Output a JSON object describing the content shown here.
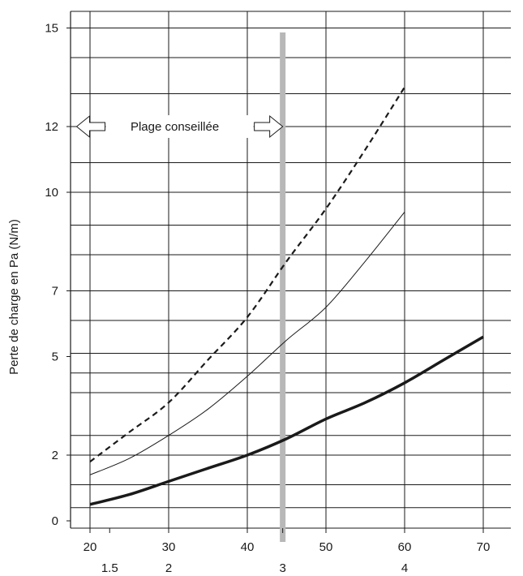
{
  "chart_data": {
    "type": "line",
    "title": "",
    "xlabel": "",
    "ylabel": "Perte de charge en Pa (N/m)",
    "x_ticks": [
      "20",
      "30",
      "40",
      "50",
      "60",
      "70"
    ],
    "x_secondary_ticks": [
      {
        "x": 22.5,
        "label": "1.5"
      },
      {
        "x": 30,
        "label": "2"
      },
      {
        "x": 44.5,
        "label": "3"
      },
      {
        "x": 60,
        "label": "4"
      }
    ],
    "y_ticks": [
      {
        "y": 0,
        "label": "0"
      },
      {
        "y": 2,
        "label": "2"
      },
      {
        "y": 5,
        "label": "5"
      },
      {
        "y": 7,
        "label": "7"
      },
      {
        "y": 10,
        "label": "10"
      },
      {
        "y": 12,
        "label": "12"
      },
      {
        "y": 15,
        "label": "15"
      }
    ],
    "xlim": [
      19,
      71
    ],
    "ylim": [
      0,
      16
    ],
    "y_gridlines": [
      0.4,
      1.1,
      2,
      2.6,
      3.9,
      4.5,
      5.1,
      6.1,
      7,
      8.1,
      9,
      10,
      10.9,
      12,
      13,
      14.1,
      15
    ],
    "grid": true,
    "reference_line": {
      "x": 44.5,
      "color": "#b8b8b8"
    },
    "annotation": {
      "text": "Plage conseillée",
      "y": 12,
      "x_from": 18.3,
      "x_to": 44.5
    },
    "series": [
      {
        "style": "dashed",
        "color": "#1a1a1a",
        "x": [
          20,
          25,
          30,
          35,
          40,
          45,
          50,
          55,
          60
        ],
        "y": [
          1.8,
          2.7,
          3.6,
          4.9,
          6.2,
          7.9,
          9.5,
          11.3,
          13.2
        ]
      },
      {
        "style": "thin",
        "color": "#1a1a1a",
        "x": [
          20,
          25,
          30,
          35,
          40,
          45,
          50,
          55,
          60
        ],
        "y": [
          1.4,
          1.9,
          2.6,
          3.4,
          4.4,
          5.5,
          6.5,
          7.9,
          9.4
        ]
      },
      {
        "style": "thick",
        "color": "#1a1a1a",
        "x": [
          20,
          25,
          30,
          35,
          40,
          45,
          50,
          55,
          60,
          65,
          70
        ],
        "y": [
          0.5,
          0.8,
          1.2,
          1.6,
          2.0,
          2.5,
          3.1,
          3.6,
          4.2,
          4.9,
          5.6
        ]
      }
    ]
  }
}
